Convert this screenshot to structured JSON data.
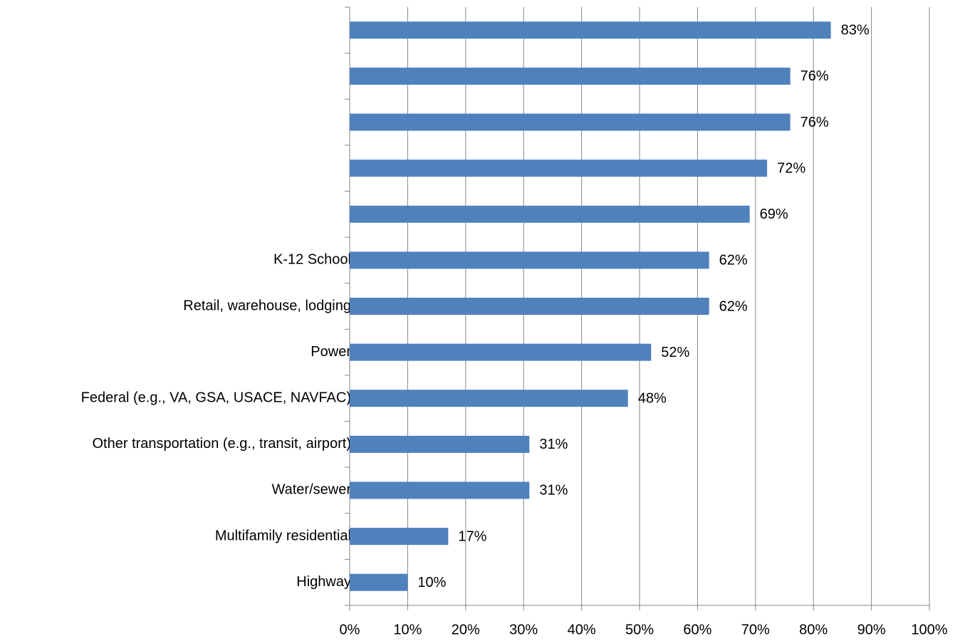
{
  "chart_data": {
    "type": "bar",
    "orientation": "horizontal",
    "categories": [
      null,
      null,
      null,
      null,
      null,
      "K-12 School",
      "Retail, warehouse, lodging",
      "Power",
      "Federal (e.g., VA, GSA, USACE, NAVFAC)",
      "Other transportation (e.g., transit, airport)",
      "Water/sewer",
      "Multifamily residential",
      "Highway"
    ],
    "values": [
      83,
      76,
      76,
      72,
      69,
      62,
      62,
      52,
      48,
      31,
      31,
      17,
      10
    ],
    "value_labels": [
      "83%",
      "76%",
      "76%",
      "72%",
      "69%",
      "62%",
      "62%",
      "52%",
      "48%",
      "31%",
      "31%",
      "17%",
      "10%"
    ],
    "color": "#4f81bd",
    "xlim": [
      0,
      100
    ],
    "xticks": [
      {
        "value": 0,
        "label": "0%"
      },
      {
        "value": 10,
        "label": "10%"
      },
      {
        "value": 20,
        "label": "20%"
      },
      {
        "value": 30,
        "label": "30%"
      },
      {
        "value": 40,
        "label": "40%"
      },
      {
        "value": 50,
        "label": "50%"
      },
      {
        "value": 60,
        "label": "60%"
      },
      {
        "value": 70,
        "label": "70%"
      },
      {
        "value": 80,
        "label": "80%"
      },
      {
        "value": 90,
        "label": "90%"
      },
      {
        "value": 100,
        "label": "100%"
      }
    ],
    "grid": true
  }
}
